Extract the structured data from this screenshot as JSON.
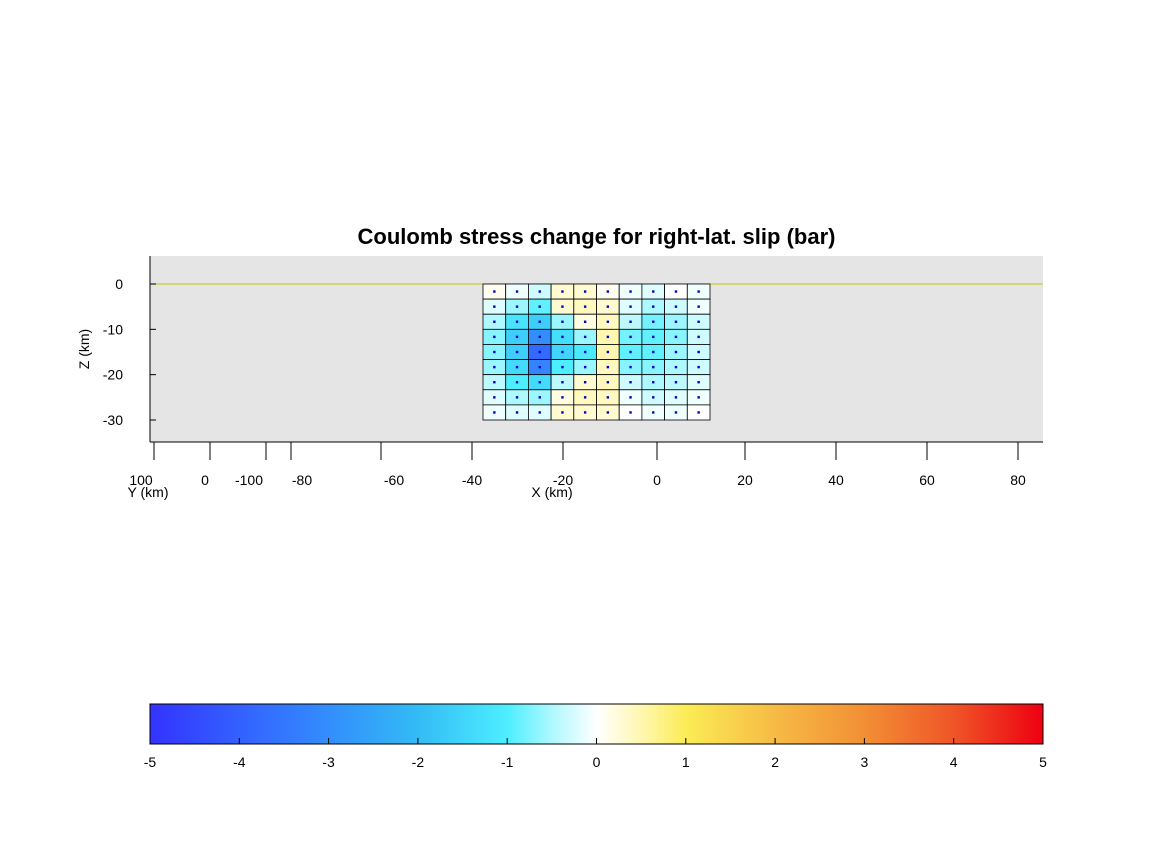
{
  "chart_data": {
    "type": "heatmap",
    "title": "Coulomb stress change for right-lat. slip (bar)",
    "xlabel": "X (km)",
    "ylabel": "Z (km)",
    "ylabel_depth_axis": "Y (km)",
    "x_ticks": [
      "-20",
      "-40",
      "-60",
      "-80",
      "-100",
      "0",
      "100",
      "0",
      "-20",
      "20",
      "40",
      "60",
      "80"
    ],
    "x_tick_labels_main": [
      "-40",
      "-20",
      "0",
      "20",
      "40",
      "60",
      "80"
    ],
    "x_tick_values_main": [
      -40,
      -20,
      0,
      20,
      40,
      60,
      80
    ],
    "x_tick_labels_y": [
      "100",
      "0",
      "-100",
      "-80",
      "-60"
    ],
    "z_ticks": [
      0,
      -10,
      -20,
      -30
    ],
    "z_tick_labels": [
      "0",
      "-10",
      "-20",
      "-30"
    ],
    "xlim": [
      -101.7,
      84
    ],
    "zlim": [
      -35,
      6
    ],
    "surface_line_color": "#cccc33",
    "background_color": "#e5e5e5",
    "fault_x_range": [
      -38.5,
      11.5
    ],
    "fault_z_range": [
      -30,
      0
    ],
    "fault_cols": 10,
    "fault_rows": 9,
    "cell_values": [
      [
        0.1,
        -0.1,
        -0.3,
        0.3,
        0.3,
        0.1,
        -0.1,
        -0.2,
        0.0,
        -0.1
      ],
      [
        -0.2,
        -0.6,
        -0.9,
        0.3,
        0.4,
        0.3,
        -0.2,
        -0.5,
        -0.3,
        -0.1
      ],
      [
        -0.5,
        -1.2,
        -1.6,
        -0.6,
        0.2,
        0.4,
        -0.4,
        -0.8,
        -0.6,
        -0.3
      ],
      [
        -0.7,
        -1.6,
        -3.0,
        -1.3,
        -0.6,
        0.5,
        -0.8,
        -0.9,
        -0.7,
        -0.3
      ],
      [
        -0.7,
        -1.6,
        -3.8,
        -1.5,
        -1.1,
        0.5,
        -0.9,
        -0.9,
        -0.6,
        -0.3
      ],
      [
        -0.6,
        -1.4,
        -3.2,
        -1.0,
        -0.6,
        0.4,
        -0.7,
        -0.7,
        -0.5,
        -0.3
      ],
      [
        -0.4,
        -1.0,
        -1.4,
        -0.4,
        0.3,
        0.4,
        -0.3,
        -0.5,
        -0.4,
        -0.2
      ],
      [
        -0.2,
        -0.5,
        -0.6,
        0.2,
        0.4,
        0.4,
        -0.1,
        -0.3,
        -0.2,
        -0.1
      ],
      [
        -0.1,
        -0.2,
        -0.2,
        0.3,
        0.3,
        0.3,
        0.0,
        -0.1,
        -0.1,
        0.0
      ]
    ],
    "colorbar": {
      "min": -5,
      "max": 5,
      "tick_values": [
        -5,
        -4,
        -3,
        -2,
        -1,
        0,
        1,
        2,
        3,
        4,
        5
      ],
      "tick_labels": [
        "-5",
        "-4",
        "-3",
        "-2",
        "-1",
        "0",
        "1",
        "2",
        "3",
        "4",
        "5"
      ],
      "stops": [
        {
          "v": -5,
          "color": "#3333ff"
        },
        {
          "v": -3.5,
          "color": "#3377ff"
        },
        {
          "v": -2,
          "color": "#33bbf5"
        },
        {
          "v": -1,
          "color": "#4deeff"
        },
        {
          "v": -0.5,
          "color": "#aef8ff"
        },
        {
          "v": 0,
          "color": "#ffffff"
        },
        {
          "v": 0.5,
          "color": "#fff7b0"
        },
        {
          "v": 1,
          "color": "#fbec55"
        },
        {
          "v": 2,
          "color": "#f6bb45"
        },
        {
          "v": 3,
          "color": "#f28f35"
        },
        {
          "v": 4,
          "color": "#ef5527"
        },
        {
          "v": 5,
          "color": "#ee0011"
        }
      ]
    },
    "marker_color": "#0000cc",
    "grid": false
  }
}
